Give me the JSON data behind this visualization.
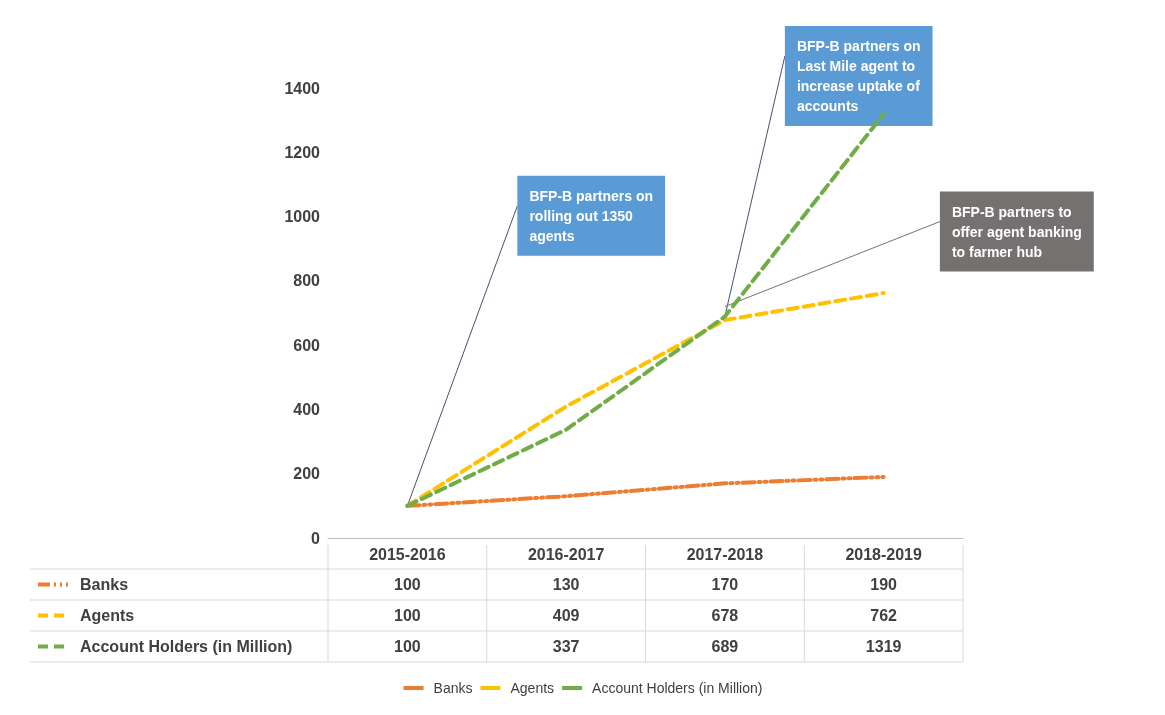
{
  "chart_data": {
    "type": "line",
    "categories": [
      "2015-2016",
      "2016-2017",
      "2017-2018",
      "2018-2019"
    ],
    "series": [
      {
        "name": "Banks",
        "color": "#ed7d31",
        "line_style": "dotted",
        "values": [
          100,
          130,
          170,
          190
        ]
      },
      {
        "name": "Agents",
        "color": "#ffc000",
        "line_style": "dashed",
        "values": [
          100,
          409,
          678,
          762
        ]
      },
      {
        "name": "Account Holders (in Million)",
        "color": "#70ad47",
        "line_style": "dashed",
        "values": [
          100,
          337,
          689,
          1319
        ]
      }
    ],
    "ylim": [
      0,
      1400
    ],
    "yticks": [
      0,
      200,
      400,
      600,
      800,
      1000,
      1200,
      1400
    ],
    "grid": false,
    "legend": "bottom",
    "marker": "none",
    "data_labels": true,
    "annotations": [
      {
        "text": "BFP-B partners on rolling out 1350 agents",
        "x": "2015-2016",
        "y": 100
      },
      {
        "text": "BFP-B partners on Last Mile agent to increase uptake of accounts",
        "x": "2017-2018",
        "y": 689
      },
      {
        "text": "BFP-B partners to offer agent banking to farmer hub",
        "x": "2017-2018",
        "y": 720
      }
    ]
  }
}
